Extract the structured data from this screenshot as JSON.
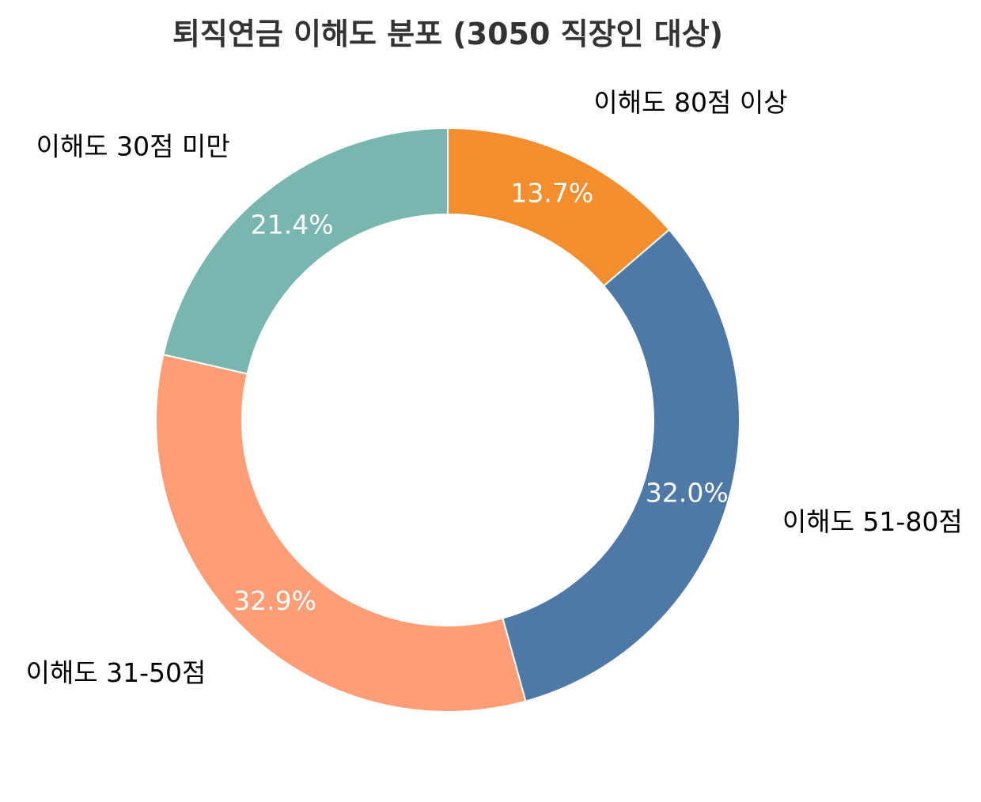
{
  "chart_data": {
    "type": "pie",
    "variant": "donut",
    "title": "퇴직연금 이해도 분포 (3050 직장인 대상)",
    "categories": [
      "이해도 80점 이상",
      "이해도 51-80점",
      "이해도 31-50점",
      "이해도 30점 미만"
    ],
    "values": [
      13.7,
      32.0,
      32.9,
      21.4
    ],
    "value_labels": [
      "13.7%",
      "32.0%",
      "32.9%",
      "21.4%"
    ],
    "colors": [
      "#f28e2e",
      "#4e79a6",
      "#ff9d76",
      "#79b6af"
    ],
    "direction": "clockwise",
    "start": "top",
    "legend": "none"
  }
}
